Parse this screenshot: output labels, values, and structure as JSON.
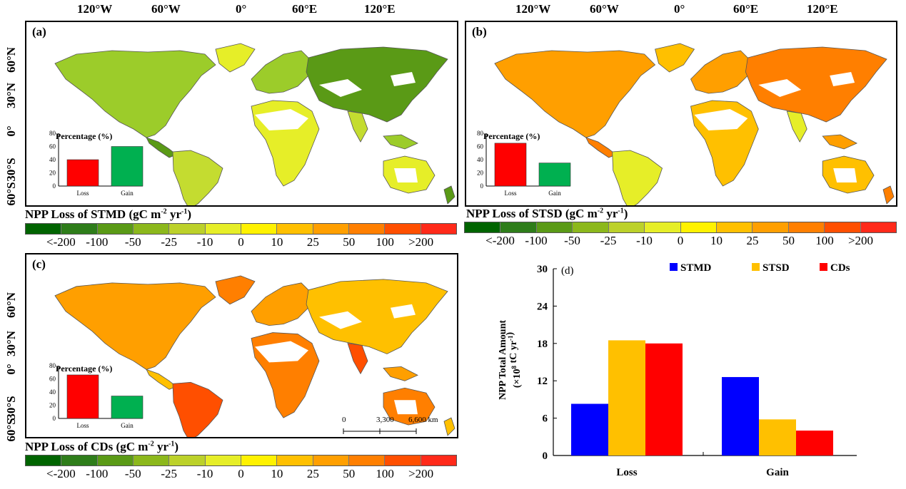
{
  "longitude_labels": [
    "120°W",
    "60°W",
    "0°",
    "60°E",
    "120°E"
  ],
  "latitude_labels": [
    "60°N",
    "30°N",
    "0°",
    "30°S",
    "60°S"
  ],
  "colorbar": {
    "colors": [
      "#006400",
      "#2e7d1a",
      "#5a9a16",
      "#8cb81c",
      "#bcd12a",
      "#e6ee28",
      "#fff200",
      "#ffc000",
      "#ff9f00",
      "#ff7f00",
      "#ff4f00",
      "#ff2a1a"
    ],
    "tick_labels": [
      "<-200",
      "-100",
      "-50",
      "-25",
      "-10",
      "0",
      "10",
      "25",
      "50",
      "100",
      ">200"
    ]
  },
  "panels": [
    {
      "label": "(a)",
      "colorbar_title": "NPP Loss of STMD",
      "unit": "gC m",
      "unit_exp1": "-2",
      "unit_mid": " yr",
      "unit_exp2": "-1",
      "unit_close": ")",
      "map_tint": "green",
      "inset": {
        "title": "Percentage (%)",
        "yticks": [
          "80",
          "60",
          "40",
          "20",
          "0"
        ],
        "categories": [
          "Loss",
          "Gain"
        ],
        "values": [
          40,
          60
        ]
      }
    },
    {
      "label": "(b)",
      "colorbar_title": "NPP Loss of STSD",
      "unit": "gC m",
      "unit_exp1": "-2",
      "unit_mid": " yr",
      "unit_exp2": "-1",
      "unit_close": ")",
      "map_tint": "orange",
      "inset": {
        "title": "Percentage (%)",
        "yticks": [
          "80",
          "60",
          "40",
          "20",
          "0"
        ],
        "categories": [
          "Loss",
          "Gain"
        ],
        "values": [
          65,
          35
        ]
      }
    },
    {
      "label": "(c)",
      "colorbar_title": "NPP Loss of CDs",
      "unit": "gC m",
      "unit_exp1": "-2",
      "unit_mid": " yr",
      "unit_exp2": "-1",
      "unit_close": ")",
      "map_tint": "red",
      "inset": {
        "title": "Percentage (%)",
        "yticks": [
          "80",
          "60",
          "40",
          "20",
          "0"
        ],
        "categories": [
          "Loss",
          "Gain"
        ],
        "values": [
          66,
          34
        ]
      },
      "scalebar": [
        "0",
        "3,300",
        "6,600 km"
      ]
    }
  ],
  "inset_colors": {
    "loss": "#ff0000",
    "gain": "#00b050"
  },
  "chart_data": {
    "type": "bar",
    "label": "(d)",
    "categories": [
      "Loss",
      "Gain"
    ],
    "series": [
      {
        "name": "STMD",
        "color": "#0000ff",
        "values": [
          8.3,
          12.6
        ]
      },
      {
        "name": "STSD",
        "color": "#ffc000",
        "values": [
          18.5,
          5.8
        ]
      },
      {
        "name": "CDs",
        "color": "#ff0000",
        "values": [
          18.0,
          4.0
        ]
      }
    ],
    "ylabel_line1": "NPP Total Amount",
    "ylabel_line2": "(×10",
    "ylabel_exp1": "8",
    "ylabel_mid": " tC yr",
    "ylabel_exp2": "-1",
    "ylabel_close": ")",
    "ylim": [
      0,
      30
    ],
    "yticks": [
      0,
      6,
      12,
      18,
      24,
      30
    ],
    "grid": false,
    "legend_position": "top"
  }
}
